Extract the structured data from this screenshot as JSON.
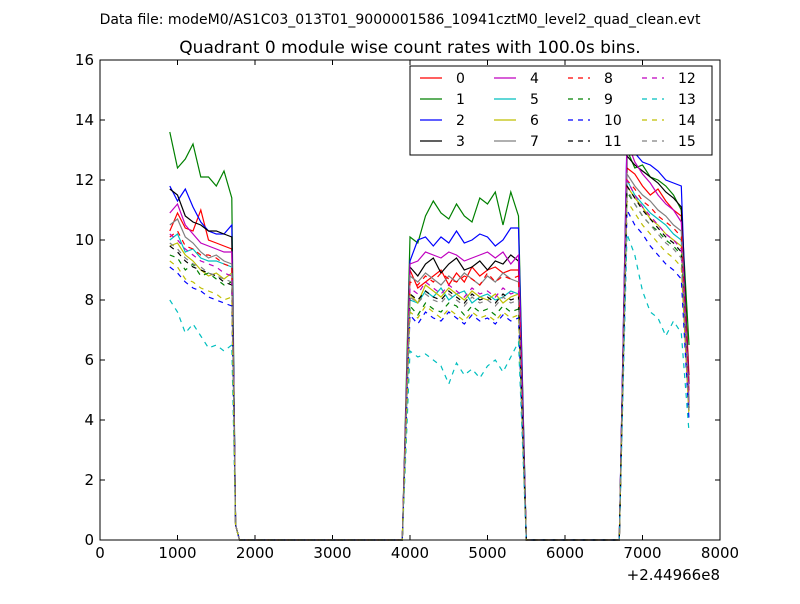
{
  "suptitle": "Data file: modeM0/AS1C03_013T01_9000001586_10941cztM0_level2_quad_clean.evt",
  "chart_data": {
    "type": "line",
    "title": "Quadrant 0 module wise count rates with 100.0s bins.",
    "xlabel": "",
    "ylabel": "",
    "x_offset_label": "+2.44966e8",
    "xlim": [
      0,
      8000
    ],
    "ylim": [
      0,
      16
    ],
    "xticks": [
      0,
      1000,
      2000,
      3000,
      4000,
      5000,
      6000,
      7000,
      8000
    ],
    "yticks": [
      0,
      2,
      4,
      6,
      8,
      10,
      12,
      14,
      16
    ],
    "grid": false,
    "legend_position": "top-right",
    "legend_columns": 4,
    "x": [
      900,
      1000,
      1100,
      1200,
      1300,
      1400,
      1500,
      1600,
      1700,
      1750,
      1800,
      1900,
      2000,
      3900,
      4000,
      4100,
      4200,
      4300,
      4400,
      4500,
      4600,
      4700,
      4800,
      4900,
      5000,
      5100,
      5200,
      5300,
      5400,
      5500,
      5600,
      6700,
      6800,
      6900,
      7000,
      7100,
      7200,
      7300,
      7400,
      7500,
      7600
    ],
    "series": [
      {
        "name": "0",
        "color": "#ff0000",
        "dash": false,
        "values": [
          10.3,
          10.9,
          10.4,
          10.3,
          11.0,
          10.0,
          9.9,
          9.8,
          9.7,
          0.5,
          0.0,
          0.0,
          0.0,
          0.0,
          9.0,
          8.4,
          8.6,
          8.8,
          9.0,
          8.5,
          8.9,
          8.6,
          9.1,
          8.8,
          9.0,
          9.1,
          8.9,
          9.0,
          9.0,
          0.0,
          0.0,
          0.0,
          12.4,
          12.2,
          11.8,
          11.5,
          11.7,
          11.3,
          11.0,
          10.8,
          5.5
        ]
      },
      {
        "name": "1",
        "color": "#008000",
        "dash": false,
        "values": [
          13.6,
          12.4,
          12.7,
          13.2,
          12.1,
          12.1,
          11.8,
          12.3,
          11.4,
          0.5,
          0.0,
          0.0,
          0.0,
          0.0,
          10.1,
          9.9,
          10.8,
          11.3,
          10.9,
          10.7,
          11.2,
          10.8,
          10.6,
          11.4,
          11.2,
          11.6,
          10.5,
          11.6,
          10.8,
          0.0,
          0.0,
          0.0,
          13.0,
          12.4,
          12.5,
          12.1,
          12.0,
          11.8,
          11.5,
          11.0,
          6.5
        ]
      },
      {
        "name": "2",
        "color": "#0000ff",
        "dash": false,
        "values": [
          11.8,
          11.3,
          11.7,
          11.1,
          10.6,
          10.3,
          10.2,
          10.2,
          10.5,
          0.5,
          0.0,
          0.0,
          0.0,
          0.0,
          9.3,
          10.0,
          10.1,
          9.8,
          10.1,
          9.9,
          10.3,
          9.9,
          10.0,
          10.2,
          10.1,
          9.8,
          10.0,
          10.4,
          10.4,
          0.0,
          0.0,
          0.0,
          13.5,
          12.9,
          12.6,
          12.5,
          12.3,
          12.0,
          11.9,
          11.8,
          4.5
        ]
      },
      {
        "name": "3",
        "color": "#000000",
        "dash": false,
        "values": [
          11.7,
          11.5,
          10.8,
          10.6,
          10.5,
          10.3,
          10.3,
          10.2,
          10.1,
          0.5,
          0.0,
          0.0,
          0.0,
          0.0,
          9.1,
          8.8,
          9.2,
          9.4,
          8.9,
          9.2,
          9.4,
          9.0,
          9.1,
          9.3,
          9.0,
          9.3,
          9.2,
          9.5,
          9.3,
          0.0,
          0.0,
          0.0,
          12.8,
          12.5,
          12.3,
          12.1,
          11.9,
          11.6,
          11.4,
          11.1,
          5.2
        ]
      },
      {
        "name": "4",
        "color": "#bf00bf",
        "dash": false,
        "values": [
          10.9,
          11.2,
          10.5,
          10.2,
          9.9,
          9.8,
          9.7,
          9.6,
          9.6,
          0.5,
          0.0,
          0.0,
          0.0,
          0.0,
          9.2,
          9.3,
          9.6,
          9.5,
          9.4,
          9.6,
          9.5,
          9.3,
          9.4,
          9.5,
          9.6,
          9.4,
          9.6,
          9.2,
          9.5,
          0.0,
          0.0,
          0.0,
          13.3,
          12.6,
          12.2,
          11.9,
          11.5,
          11.2,
          11.0,
          10.6,
          5.0
        ]
      },
      {
        "name": "5",
        "color": "#00bfbf",
        "dash": false,
        "values": [
          10.0,
          10.2,
          9.6,
          9.7,
          9.4,
          9.3,
          9.3,
          9.2,
          9.1,
          0.5,
          0.0,
          0.0,
          0.0,
          0.0,
          8.0,
          7.9,
          8.3,
          8.1,
          8.4,
          8.0,
          8.2,
          8.3,
          7.9,
          8.1,
          8.2,
          8.0,
          8.1,
          8.3,
          8.2,
          0.0,
          0.0,
          0.0,
          12.0,
          11.5,
          11.2,
          10.9,
          10.7,
          10.5,
          10.2,
          10.0,
          4.4
        ]
      },
      {
        "name": "6",
        "color": "#bfbf00",
        "dash": false,
        "values": [
          9.8,
          9.9,
          9.5,
          9.3,
          9.0,
          8.8,
          8.9,
          8.7,
          8.9,
          0.5,
          0.0,
          0.0,
          0.0,
          0.0,
          8.2,
          7.9,
          8.5,
          8.3,
          8.1,
          8.4,
          8.2,
          8.0,
          8.3,
          8.1,
          8.0,
          8.2,
          7.9,
          8.1,
          8.2,
          0.0,
          0.0,
          0.0,
          11.8,
          11.4,
          11.1,
          10.7,
          10.5,
          10.2,
          10.0,
          9.8,
          4.3
        ]
      },
      {
        "name": "7",
        "color": "#808080",
        "dash": false,
        "values": [
          10.5,
          10.7,
          10.1,
          9.9,
          9.6,
          9.4,
          9.5,
          9.3,
          9.2,
          0.5,
          0.0,
          0.0,
          0.0,
          0.0,
          8.8,
          8.6,
          8.9,
          8.7,
          8.5,
          8.8,
          8.6,
          8.9,
          8.7,
          8.5,
          8.8,
          8.6,
          8.9,
          8.7,
          8.6,
          0.0,
          0.0,
          0.0,
          12.2,
          11.8,
          11.5,
          11.3,
          11.0,
          10.8,
          10.5,
          10.3,
          4.6
        ]
      },
      {
        "name": "8",
        "color": "#ff0000",
        "dash": true,
        "values": [
          10.1,
          10.3,
          9.8,
          9.7,
          9.5,
          9.5,
          9.4,
          9.2,
          9.1,
          0.5,
          0.0,
          0.0,
          0.0,
          0.0,
          8.6,
          8.5,
          8.8,
          8.6,
          8.9,
          8.7,
          8.6,
          8.8,
          8.7,
          8.5,
          8.9,
          8.6,
          8.8,
          8.7,
          8.8,
          0.0,
          0.0,
          0.0,
          12.0,
          11.7,
          11.3,
          11.1,
          10.8,
          10.6,
          10.4,
          10.1,
          4.8
        ]
      },
      {
        "name": "9",
        "color": "#008000",
        "dash": true,
        "values": [
          9.5,
          9.4,
          9.0,
          9.2,
          8.8,
          8.9,
          8.7,
          8.5,
          8.6,
          0.5,
          0.0,
          0.0,
          0.0,
          0.0,
          7.8,
          7.5,
          7.9,
          7.7,
          7.6,
          7.9,
          7.8,
          7.5,
          7.8,
          7.6,
          7.7,
          7.5,
          7.8,
          7.6,
          7.7,
          0.0,
          0.0,
          0.0,
          11.6,
          11.2,
          10.8,
          10.5,
          10.3,
          10.0,
          9.8,
          9.5,
          4.2
        ]
      },
      {
        "name": "10",
        "color": "#0000ff",
        "dash": true,
        "values": [
          9.1,
          8.9,
          8.6,
          8.4,
          8.3,
          8.1,
          8.0,
          7.9,
          7.8,
          0.5,
          0.0,
          0.0,
          0.0,
          0.0,
          7.5,
          7.2,
          7.6,
          7.4,
          7.3,
          7.6,
          7.4,
          7.2,
          7.5,
          7.3,
          7.4,
          7.2,
          7.5,
          7.3,
          7.4,
          0.0,
          0.0,
          0.0,
          11.0,
          10.5,
          10.2,
          9.8,
          9.5,
          9.2,
          9.0,
          8.7,
          4.0
        ]
      },
      {
        "name": "11",
        "color": "#000000",
        "dash": true,
        "values": [
          9.8,
          9.6,
          9.3,
          9.1,
          9.0,
          8.9,
          8.8,
          8.6,
          8.5,
          0.5,
          0.0,
          0.0,
          0.0,
          0.0,
          8.2,
          8.0,
          8.3,
          8.1,
          8.0,
          8.3,
          8.1,
          7.9,
          8.2,
          8.0,
          8.1,
          7.9,
          8.2,
          8.0,
          8.1,
          0.0,
          0.0,
          0.0,
          11.8,
          11.4,
          11.0,
          10.7,
          10.4,
          10.1,
          9.9,
          9.6,
          4.4
        ]
      },
      {
        "name": "12",
        "color": "#bf00bf",
        "dash": true,
        "values": [
          10.2,
          10.0,
          9.7,
          9.5,
          9.3,
          9.2,
          9.1,
          8.9,
          8.8,
          0.5,
          0.0,
          0.0,
          0.0,
          0.0,
          8.4,
          8.2,
          8.6,
          8.4,
          8.2,
          8.5,
          8.3,
          8.1,
          8.4,
          8.2,
          8.3,
          8.1,
          8.4,
          8.2,
          8.3,
          0.0,
          0.0,
          0.0,
          12.0,
          11.5,
          11.1,
          10.8,
          10.5,
          10.2,
          10.0,
          9.7,
          4.5
        ]
      },
      {
        "name": "13",
        "color": "#00bfbf",
        "dash": true,
        "values": [
          8.0,
          7.6,
          6.9,
          7.2,
          6.8,
          6.4,
          6.5,
          6.3,
          6.5,
          0.5,
          0.0,
          0.0,
          0.0,
          0.0,
          6.3,
          6.1,
          6.2,
          6.0,
          5.8,
          5.2,
          5.9,
          5.5,
          5.7,
          5.4,
          5.8,
          6.0,
          5.6,
          6.1,
          6.6,
          0.0,
          0.0,
          0.0,
          10.2,
          9.5,
          8.3,
          7.6,
          7.4,
          6.8,
          7.3,
          6.9,
          3.6
        ]
      },
      {
        "name": "14",
        "color": "#bfbf00",
        "dash": true,
        "values": [
          9.3,
          9.1,
          8.7,
          8.6,
          8.4,
          8.3,
          8.2,
          8.0,
          8.1,
          0.5,
          0.0,
          0.0,
          0.0,
          0.0,
          7.6,
          7.4,
          7.8,
          7.6,
          7.4,
          7.7,
          7.5,
          7.3,
          7.6,
          7.4,
          7.5,
          7.3,
          7.6,
          7.4,
          7.5,
          0.0,
          0.0,
          0.0,
          11.3,
          10.9,
          10.5,
          10.2,
          9.9,
          9.6,
          9.4,
          9.1,
          4.1
        ]
      },
      {
        "name": "15",
        "color": "#808080",
        "dash": true,
        "values": [
          9.9,
          9.7,
          9.4,
          9.2,
          9.1,
          8.9,
          8.8,
          8.7,
          8.6,
          0.5,
          0.0,
          0.0,
          0.0,
          0.0,
          8.1,
          7.9,
          8.2,
          8.0,
          7.9,
          8.2,
          8.0,
          7.8,
          8.1,
          7.9,
          8.0,
          7.8,
          8.1,
          7.9,
          8.0,
          0.0,
          0.0,
          0.0,
          11.7,
          11.2,
          10.8,
          10.5,
          10.2,
          9.9,
          9.7,
          9.4,
          4.3
        ]
      }
    ]
  }
}
